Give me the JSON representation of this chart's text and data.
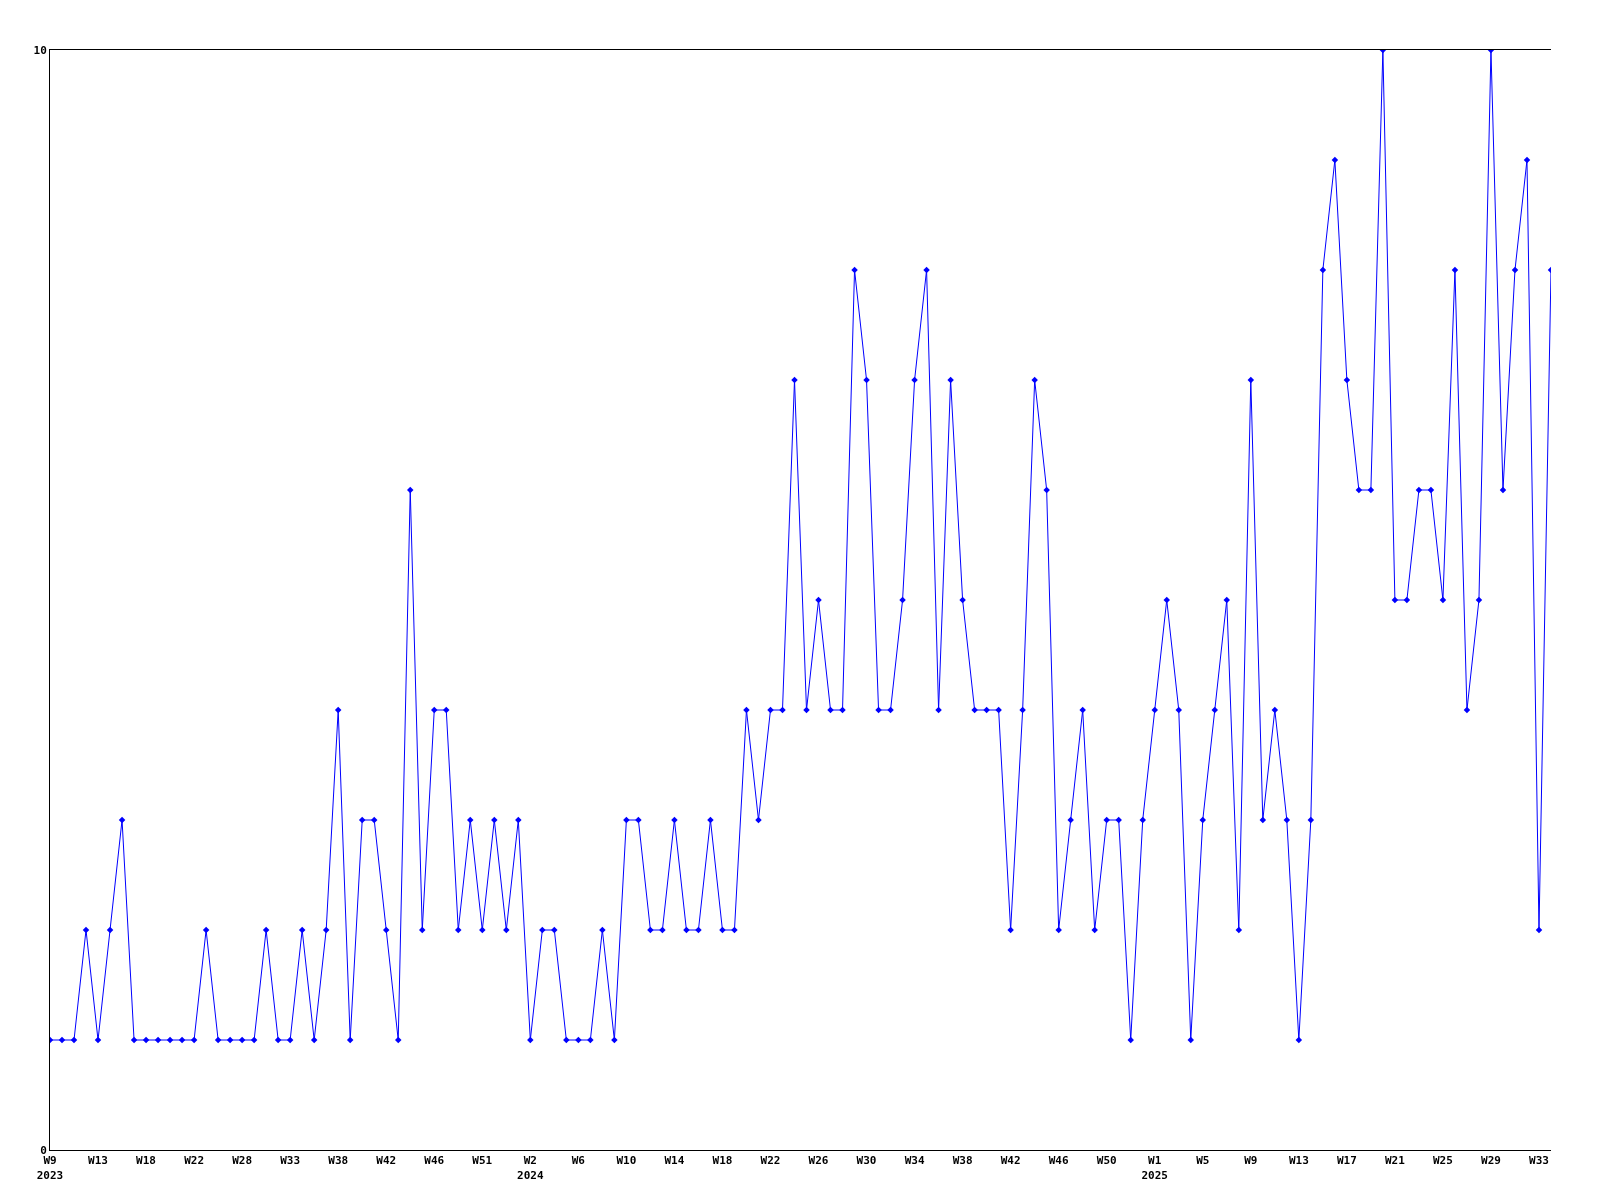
{
  "chart_data": {
    "type": "line",
    "categories": [
      "W9\n2023",
      null,
      null,
      null,
      "W13",
      null,
      null,
      null,
      "W18",
      null,
      null,
      null,
      "W22",
      null,
      null,
      null,
      "W28",
      null,
      null,
      null,
      "W33",
      null,
      null,
      null,
      "W38",
      null,
      null,
      null,
      "W42",
      null,
      null,
      null,
      "W46",
      null,
      null,
      null,
      "W51",
      null,
      null,
      null,
      "W2\n2024",
      null,
      null,
      null,
      "W6",
      null,
      null,
      null,
      "W10",
      null,
      null,
      null,
      "W14",
      null,
      null,
      null,
      "W18",
      null,
      null,
      null,
      "W22",
      null,
      null,
      null,
      "W26",
      null,
      null,
      null,
      "W30",
      null,
      null,
      null,
      "W34",
      null,
      null,
      null,
      "W38",
      null,
      null,
      null,
      "W42",
      null,
      null,
      null,
      "W46",
      null,
      null,
      null,
      "W50",
      null,
      null,
      null,
      "W1\n2025",
      null,
      null,
      null,
      "W5",
      null,
      null,
      null,
      "W9",
      null,
      null,
      null,
      "W13",
      null,
      null,
      null,
      "W17",
      null,
      null,
      null,
      "W21",
      null,
      null,
      null,
      "W25",
      null,
      null,
      null,
      "W29",
      null,
      null,
      null,
      "W33",
      null
    ],
    "values": [
      1,
      1,
      1,
      2,
      1,
      2,
      3,
      1,
      1,
      1,
      1,
      1,
      1,
      2,
      1,
      1,
      1,
      1,
      2,
      1,
      1,
      2,
      1,
      2,
      4,
      1,
      3,
      3,
      2,
      1,
      6,
      2,
      4,
      4,
      2,
      3,
      2,
      3,
      2,
      3,
      1,
      2,
      2,
      1,
      1,
      1,
      2,
      1,
      3,
      3,
      2,
      2,
      3,
      2,
      2,
      3,
      2,
      2,
      4,
      3,
      4,
      4,
      7,
      4,
      5,
      4,
      4,
      8,
      7,
      4,
      4,
      5,
      7,
      8,
      4,
      7,
      5,
      4,
      4,
      4,
      2,
      4,
      7,
      6,
      2,
      3,
      4,
      2,
      3,
      3,
      1,
      3,
      4,
      5,
      4,
      1,
      3,
      4,
      5,
      2,
      7,
      3,
      4,
      3,
      1,
      3,
      8,
      9,
      7,
      6,
      6,
      10,
      5,
      5,
      6,
      6,
      5,
      8,
      4,
      5,
      10,
      6,
      8,
      9,
      2,
      8
    ],
    "color": "#0000ff",
    "marker": "diamond",
    "line_style": "solid",
    "ylim": [
      0,
      10
    ],
    "yticks": [
      0,
      10
    ]
  }
}
